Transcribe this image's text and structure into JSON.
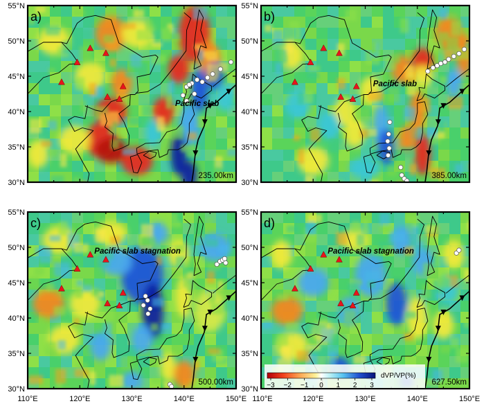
{
  "panels": [
    {
      "id": "a",
      "label": "a)",
      "depth": "235.00km",
      "annotation": "Pacific slab",
      "lat_labels": [
        "55°N",
        "50°N",
        "45°N",
        "40°N",
        "35°N",
        "30°N"
      ]
    },
    {
      "id": "b",
      "label": "b)",
      "depth": "385.00km",
      "annotation": "Pacific slab",
      "lat_labels": [
        "55°N",
        "50°N",
        "45°N",
        "40°N",
        "35°N",
        "30°N"
      ]
    },
    {
      "id": "c",
      "label": "c)",
      "depth": "500.00km",
      "annotation": "Pacific slab stagnation",
      "lat_labels": [
        "55°N",
        "50°N",
        "45°N",
        "40°N",
        "35°N",
        "30°N"
      ]
    },
    {
      "id": "d",
      "label": "d)",
      "depth": "627.50km",
      "annotation": "Pacific slab stagnation",
      "lat_labels": [
        "55°N",
        "50°N",
        "45°N",
        "40°N",
        "35°N",
        "30°N"
      ]
    }
  ],
  "lon_labels": [
    "110°E",
    "120°E",
    "130°E",
    "140°E",
    "150°E"
  ],
  "colorbar": {
    "title": "dVP/VP(%)",
    "ticks": [
      "−3",
      "−2",
      "−1",
      "0",
      "1",
      "2",
      "3"
    ],
    "colors": [
      "#d7191c",
      "#f46d43",
      "#fdae61",
      "#ffff8c",
      "#a6d96a",
      "#3ec7a0",
      "#6fd3f5",
      "#2b6cd4",
      "#08188e"
    ]
  },
  "map_extent": {
    "lon": [
      110,
      150
    ],
    "lat": [
      30,
      55
    ]
  }
}
